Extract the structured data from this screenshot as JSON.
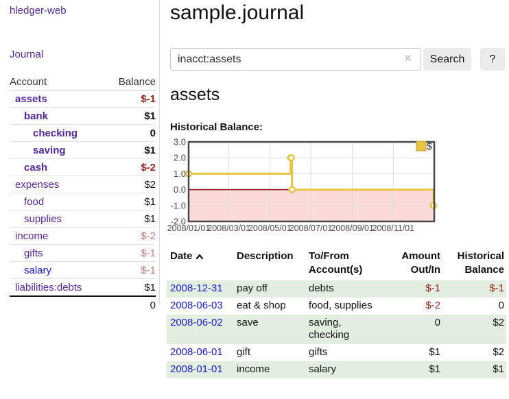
{
  "app": {
    "title": "hledger-web",
    "nav_journal": "Journal"
  },
  "sidebar": {
    "header": {
      "account": "Account",
      "balance": "Balance"
    },
    "accounts": [
      {
        "label": "assets",
        "balance": "$-1",
        "indent": 1,
        "bold": true,
        "label_color": "purple",
        "balance_color": "neg"
      },
      {
        "label": "bank",
        "balance": "$1",
        "indent": 2,
        "bold": true,
        "label_color": "purple",
        "balance_color": "pos"
      },
      {
        "label": "checking",
        "balance": "0",
        "indent": 3,
        "bold": true,
        "label_color": "purple",
        "balance_color": "pos"
      },
      {
        "label": "saving",
        "balance": "$1",
        "indent": 3,
        "bold": true,
        "label_color": "purple",
        "balance_color": "pos"
      },
      {
        "label": "cash",
        "balance": "$-2",
        "indent": 2,
        "bold": true,
        "label_color": "purple",
        "balance_color": "neg"
      },
      {
        "label": "expenses",
        "balance": "$2",
        "indent": 1,
        "bold": false,
        "label_color": "purple",
        "balance_color": "pos"
      },
      {
        "label": "food",
        "balance": "$1",
        "indent": 2,
        "bold": false,
        "label_color": "purple",
        "balance_color": "pos"
      },
      {
        "label": "supplies",
        "balance": "$1",
        "indent": 2,
        "bold": false,
        "label_color": "purple",
        "balance_color": "pos"
      },
      {
        "label": "income",
        "balance": "$-2",
        "indent": 1,
        "bold": false,
        "label_color": "purple",
        "balance_color": "negsoft"
      },
      {
        "label": "gifts",
        "balance": "$-1",
        "indent": 2,
        "bold": false,
        "label_color": "purple",
        "balance_color": "negsoft"
      },
      {
        "label": "salary",
        "balance": "$-1",
        "indent": 2,
        "bold": false,
        "label_color": "blue",
        "balance_color": "negsoft"
      },
      {
        "label": "liabilities:debts",
        "balance": "$1",
        "indent": 1,
        "bold": false,
        "label_color": "purple",
        "balance_color": "pos"
      }
    ],
    "total": "0"
  },
  "main": {
    "title": "sample.journal",
    "search": {
      "value": "inacct:assets",
      "clear_icon": "×",
      "search_label": "Search",
      "help_label": "?"
    },
    "account_heading": "assets",
    "chart_label": "Historical Balance:"
  },
  "chart_data": {
    "type": "line",
    "step": true,
    "title": "Historical Balance:",
    "series": [
      {
        "name": "$",
        "color": "#e9c440",
        "marker_fill": "#ffffff",
        "points": [
          {
            "date": "2008-01-01",
            "day": 0,
            "value": 1
          },
          {
            "date": "2008-06-01",
            "day": 152,
            "value": 2
          },
          {
            "date": "2008-06-02",
            "day": 153,
            "value": 2
          },
          {
            "date": "2008-06-03",
            "day": 154,
            "value": 0
          },
          {
            "date": "2008-12-31",
            "day": 365,
            "value": -1
          }
        ]
      }
    ],
    "x_ticks": [
      {
        "label": "2008/01/01",
        "day": 0
      },
      {
        "label": "2008/03/01",
        "day": 60
      },
      {
        "label": "2008/05/01",
        "day": 121
      },
      {
        "label": "2008/07/01",
        "day": 182
      },
      {
        "label": "2008/09/01",
        "day": 244
      },
      {
        "label": "2008/11/01",
        "day": 305
      }
    ],
    "y_ticks": [
      {
        "label": "3.0",
        "value": 3
      },
      {
        "label": "2.0",
        "value": 2
      },
      {
        "label": "1.0",
        "value": 1
      },
      {
        "label": "0.0",
        "value": 0
      },
      {
        "label": "-1.0",
        "value": -1
      },
      {
        "label": "-2.0",
        "value": -2
      }
    ],
    "xlim_days": [
      0,
      366
    ],
    "ylim": [
      -2,
      3
    ],
    "legend": {
      "label": "$",
      "position": "top-right"
    },
    "grid_on": true,
    "negative_region_fill": "#fbdada",
    "zero_line_color": "#8f1212",
    "grid_color": "#dedede",
    "border_color": "#474747",
    "tick_label_color": "#4a4a4a"
  },
  "register_table": {
    "headers": {
      "date": "Date",
      "description": "Description",
      "tofrom1": "To/From",
      "tofrom2": "Account(s)",
      "amount1": "Amount",
      "amount2": "Out/In",
      "balance1": "Historical",
      "balance2": "Balance"
    },
    "rows": [
      {
        "date": "2008-12-31",
        "description": "pay off",
        "accounts": "debts",
        "amount": "$-1",
        "amount_neg": true,
        "balance": "$-1",
        "balance_neg": true
      },
      {
        "date": "2008-06-03",
        "description": "eat & shop",
        "accounts": "food, supplies",
        "amount": "$-2",
        "amount_neg": true,
        "balance": "0",
        "balance_neg": false
      },
      {
        "date": "2008-06-02",
        "description": "save",
        "accounts": "saving, checking",
        "amount": "0",
        "amount_neg": false,
        "balance": "$2",
        "balance_neg": false
      },
      {
        "date": "2008-06-01",
        "description": "gift",
        "accounts": "gifts",
        "amount": "$1",
        "amount_neg": false,
        "balance": "$2",
        "balance_neg": false
      },
      {
        "date": "2008-01-01",
        "description": "income",
        "accounts": "salary",
        "amount": "$1",
        "amount_neg": false,
        "balance": "$1",
        "balance_neg": false
      }
    ]
  },
  "colors": {
    "link_purple": "#54279b",
    "link_blue": "#1a18cf",
    "negative_strong": "#9a1c1c",
    "negative_soft": "#c07a7a",
    "row_green": "#e2efe0",
    "chart_gold": "#e9c440",
    "chart_pink": "#fbdada",
    "button_gray": "#ececec"
  }
}
